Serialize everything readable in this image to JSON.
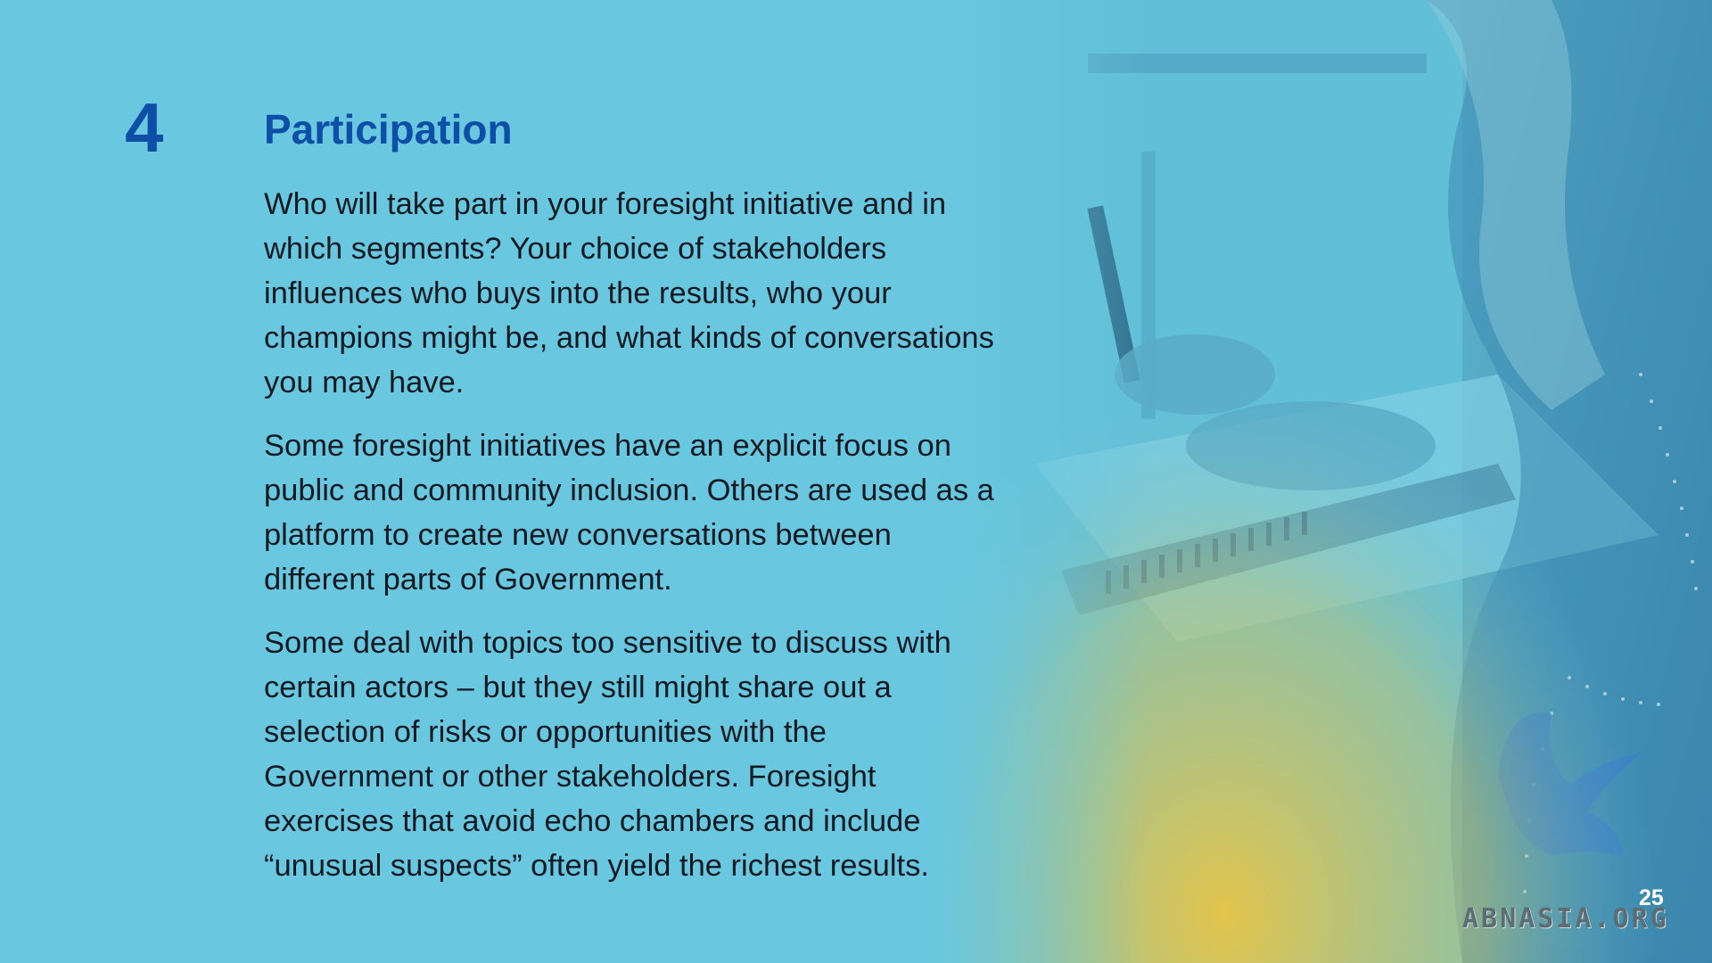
{
  "section": {
    "number": "4",
    "title": "Participation"
  },
  "paragraphs": [
    "Who will take part in your foresight initiative and in which segments? Your choice of stakeholders influences who buys into the results, who your champions might be, and what kinds of conversations you may have.",
    "Some foresight initiatives have an explicit focus on public and community inclusion. Others are used as a platform to create new conversations between different parts of Government.",
    "Some deal with topics too sensitive to discuss with certain actors – but they still might share out a selection of risks or opportunities with the Government or other stakeholders. Foresight exercises that avoid echo chambers and include “unusual suspects” often yield the richest results."
  ],
  "page_number": "25",
  "watermark": "ABNASIA.ORG",
  "colors": {
    "background": "#69c8df",
    "heading": "#0d4ea6",
    "body_text": "#111a22",
    "photo_yellow": "#e9c544"
  }
}
